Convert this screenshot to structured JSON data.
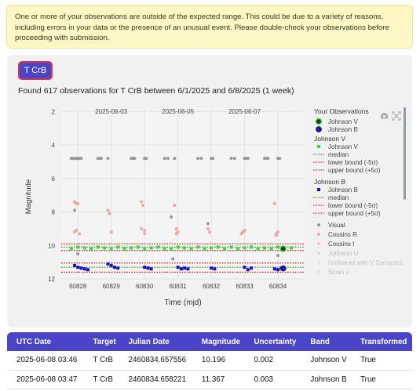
{
  "warning": {
    "text": "One or more of your observations are outside of the expected range. This could be due to a variety of reasons, including errors in your data or the presence of an unusual event. Please double-check your observations before proceeding with submission."
  },
  "star_button": {
    "label": "T CrB"
  },
  "found_text": "Found 617 observations for T CrB between 6/1/2025 and 6/8/2025 (1 week)",
  "chart_data": {
    "type": "scatter",
    "xlabel": "Time (mjd)",
    "ylabel": "Magnitude",
    "xlim": [
      60827.5,
      60834.8
    ],
    "ylim": [
      12,
      1.8
    ],
    "y_reversed": true,
    "x_ticks": [
      60828,
      60829,
      60830,
      60831,
      60832,
      60833,
      60834
    ],
    "y_ticks": [
      2,
      4,
      6,
      8,
      10,
      12
    ],
    "top_x_ticks": [
      {
        "label": "2025-06-03",
        "x": 60829.0
      },
      {
        "label": "2025-06-05",
        "x": 60831.0
      },
      {
        "label": "2025-06-07",
        "x": 60833.0
      }
    ],
    "grid": true,
    "legend_placement": "right",
    "reference_lines": [
      {
        "name": "Johnson V median",
        "y": 10.1,
        "color": "#2ca02c",
        "style": "dotted"
      },
      {
        "name": "Johnson V lower bound (-5σ)",
        "y": 9.9,
        "color": "#d62728",
        "style": "dotted"
      },
      {
        "name": "Johnson V upper bound (+5σ)",
        "y": 10.3,
        "color": "#d62728",
        "style": "dotted"
      },
      {
        "name": "Johnson B median",
        "y": 11.3,
        "color": "#2ca02c",
        "style": "dotted"
      },
      {
        "name": "Johnson B lower bound (-5σ)",
        "y": 11.05,
        "color": "#d62728",
        "style": "dotted"
      },
      {
        "name": "Johnson B upper bound (+5σ)",
        "y": 11.6,
        "color": "#d62728",
        "style": "dotted"
      }
    ],
    "series": [
      {
        "name": "Visual",
        "color": "#999999",
        "x": [
          60827.8,
          60827.85,
          60827.9,
          60827.95,
          60828.0,
          60828.05,
          60828.1,
          60828.6,
          60828.65,
          60828.7,
          60828.9,
          60829.6,
          60829.65,
          60829.7,
          60830.0,
          60830.05,
          60830.6,
          60830.7,
          60830.9,
          60831.6,
          60831.7,
          60832.0,
          60832.05,
          60832.6,
          60832.7,
          60833.0,
          60833.05,
          60833.1,
          60833.6,
          60833.65,
          60833.7,
          60834.0,
          60834.05,
          60827.9,
          60828.0,
          60830.8,
          60831.9,
          60830.85,
          60834.0
        ],
        "y": [
          4.8,
          4.8,
          4.8,
          4.8,
          4.8,
          4.8,
          4.8,
          4.8,
          4.8,
          4.8,
          4.8,
          4.8,
          4.8,
          4.8,
          4.8,
          4.8,
          4.8,
          4.8,
          4.8,
          4.8,
          4.8,
          4.8,
          4.8,
          4.8,
          4.8,
          4.8,
          4.8,
          4.8,
          4.8,
          4.8,
          4.8,
          4.8,
          4.8,
          7.9,
          10.5,
          8.3,
          8.7,
          10.8,
          10.6
        ]
      },
      {
        "name": "Cousins R",
        "color": "#f4a3a3",
        "x": [
          60827.9,
          60827.95,
          60828.0,
          60827.9,
          60827.95,
          60828.05,
          60828.9,
          60828.95,
          60829.0,
          60829.9,
          60829.95,
          60830.0,
          60829.9,
          60830.0,
          60830.9,
          60830.95,
          60831.0,
          60830.95,
          60831.9,
          60831.95,
          60832.9,
          60832.95,
          60833.0,
          60833.9,
          60833.95,
          60834.0,
          60833.95
        ],
        "y": [
          7.4,
          7.5,
          7.5,
          9.2,
          9.1,
          9.3,
          7.9,
          8.1,
          9.2,
          7.4,
          7.6,
          9.3,
          9.0,
          9.1,
          7.6,
          9.3,
          9.2,
          9.0,
          9.0,
          9.2,
          9.3,
          9.2,
          9.1,
          7.5,
          9.4,
          9.2,
          9.3
        ]
      },
      {
        "name": "Johnson V",
        "color": "#33dd33",
        "x": [
          60827.8,
          60828.0,
          60828.2,
          60828.4,
          60828.6,
          60828.8,
          60829.0,
          60829.2,
          60829.4,
          60829.6,
          60829.8,
          60830.0,
          60830.2,
          60830.4,
          60830.6,
          60830.8,
          60831.0,
          60831.2,
          60831.4,
          60831.6,
          60831.8,
          60832.0,
          60832.2,
          60832.4,
          60832.6,
          60832.8,
          60833.0,
          60833.2,
          60833.4,
          60833.6,
          60833.8,
          60834.0,
          60834.2,
          60834.4
        ],
        "y": [
          10.2,
          10.1,
          10.15,
          10.2,
          10.1,
          10.15,
          10.2,
          10.1,
          10.2,
          10.15,
          10.1,
          10.2,
          10.15,
          10.1,
          10.2,
          10.2,
          10.1,
          10.15,
          10.2,
          10.1,
          10.2,
          10.15,
          10.1,
          10.2,
          10.1,
          10.2,
          10.15,
          10.1,
          10.2,
          10.15,
          10.2,
          10.1,
          10.2,
          10.15
        ]
      },
      {
        "name": "Johnson B",
        "color": "#1515c8",
        "x": [
          60827.9,
          60828.0,
          60828.1,
          60828.2,
          60828.3,
          60828.9,
          60829.0,
          60829.1,
          60829.2,
          60830.0,
          60830.1,
          60830.2,
          60831.0,
          60831.1,
          60831.2,
          60831.3,
          60832.0,
          60832.1,
          60833.0,
          60833.1,
          60833.2,
          60833.9,
          60834.0,
          60834.1
        ],
        "y": [
          11.2,
          11.3,
          11.35,
          11.4,
          11.45,
          11.1,
          11.2,
          11.3,
          11.35,
          11.3,
          11.35,
          11.4,
          11.3,
          11.4,
          11.35,
          11.4,
          11.35,
          11.4,
          11.3,
          11.45,
          11.35,
          11.4,
          11.45,
          11.35
        ]
      }
    ]
  },
  "legend": {
    "your_observations_title": "Your Observations",
    "your_v": "Johnson V",
    "your_b": "Johnson B",
    "v_group_title": "Johnson V",
    "v_item": "Johnson V",
    "v_median": "median",
    "v_lower": "lower bound (-5σ)",
    "v_upper": "upper bound (+5σ)",
    "b_group_title": "Johnson B",
    "b_item": "Johnson B",
    "b_median": "median",
    "b_lower": "lower bound (-5σ)",
    "b_upper": "upper bound (+5σ)",
    "visual": "Visual",
    "cousins_r": "Cousins R",
    "cousins_i": "Cousins I",
    "johnson_u": "Johnson U",
    "unfiltered": "Unfiltered with V Zeropoint",
    "sloan_u": "Sloan u"
  },
  "your_observations": [
    {
      "band": "Johnson V",
      "x": 60834.157,
      "y": 10.196
    },
    {
      "band": "Johnson B",
      "x": 60834.158,
      "y": 11.367
    }
  ],
  "table": {
    "headers": [
      "UTC Date",
      "Target",
      "Julian Date",
      "Magnitude",
      "Uncertainty",
      "Band",
      "Transformed"
    ],
    "rows": [
      [
        "2025-06-08 03:46",
        "T CrB",
        "2460834.657556",
        "10.196",
        "0.002",
        "Johnson V",
        "True"
      ],
      [
        "2025-06-08 03:47",
        "T CrB",
        "2460834.658221",
        "11.367",
        "0.003",
        "Johnson B",
        "True"
      ]
    ]
  },
  "colors": {
    "accent": "#4b44c9",
    "warning_bg": "#fdf7c6",
    "panel_bg": "#f1f1f1"
  }
}
